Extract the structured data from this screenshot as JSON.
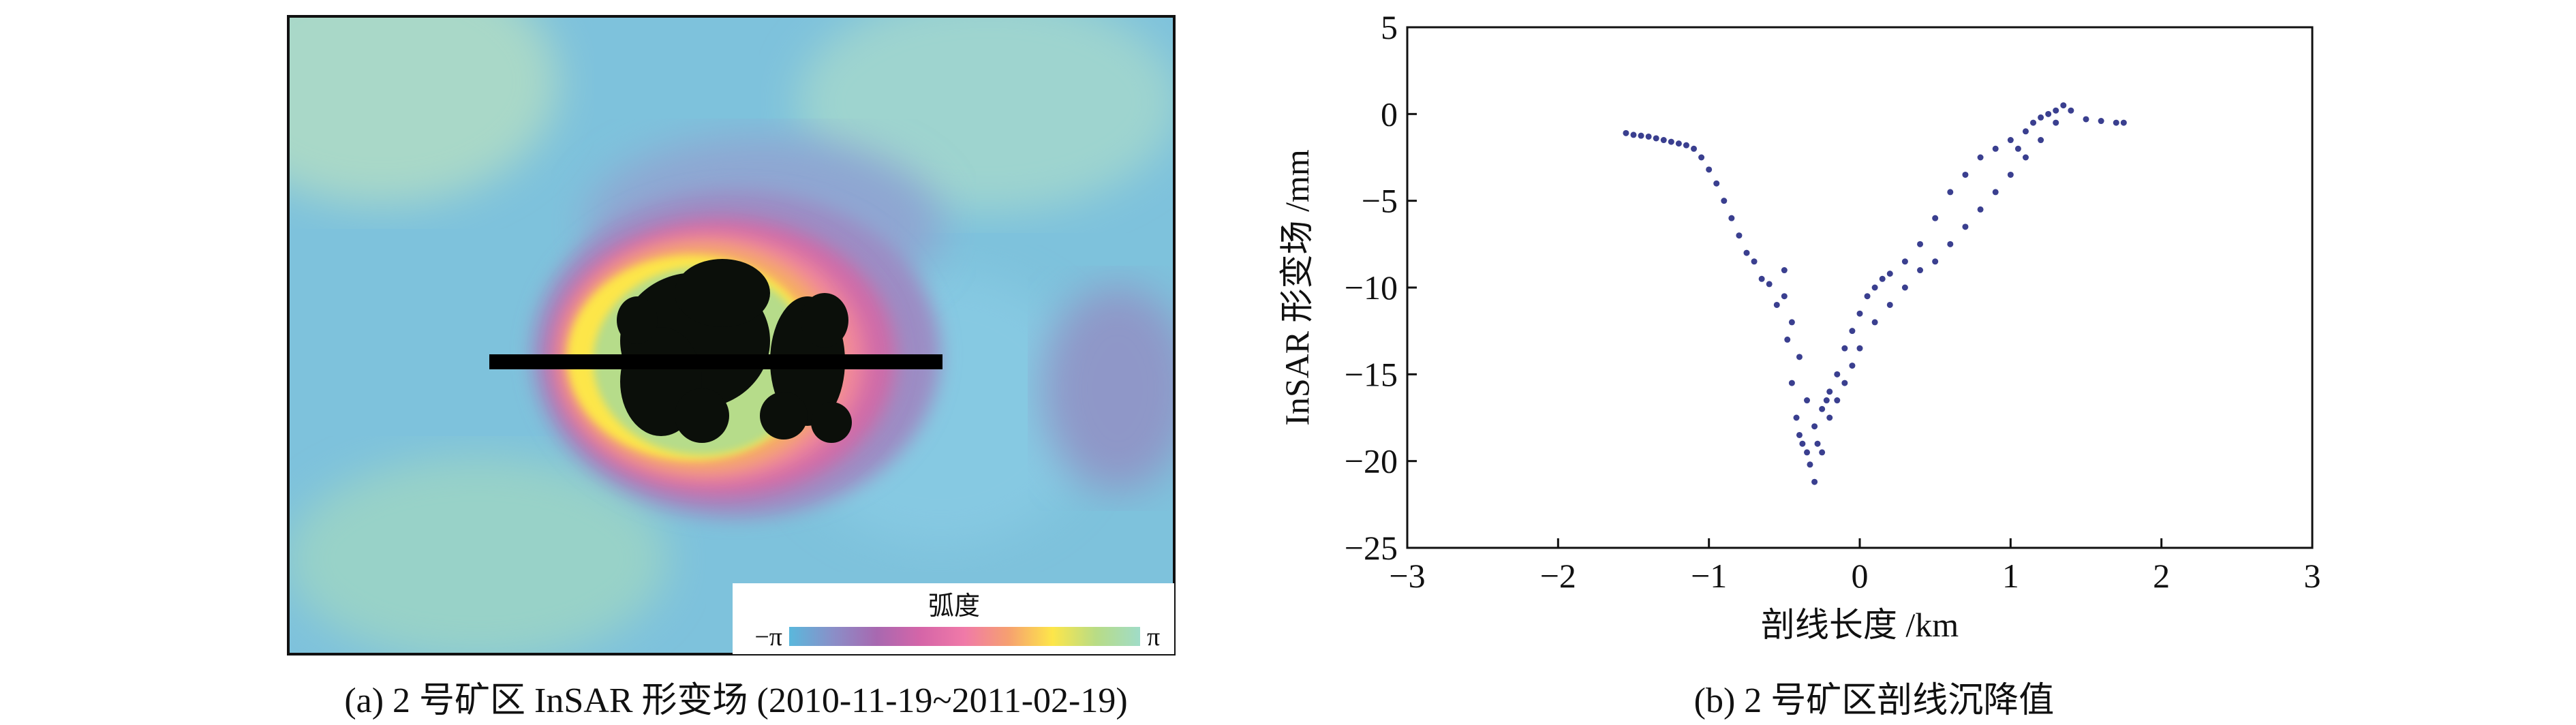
{
  "panel_a": {
    "caption": "(a) 2 号矿区 InSAR 形变场 (2010-11-19~2011-02-19)",
    "colorbar": {
      "title": "弧度",
      "min_label": "−π",
      "max_label": "π",
      "colors": [
        "#5ab8dc",
        "#8a8fc8",
        "#a868b0",
        "#d565a8",
        "#f07aa8",
        "#f6a070",
        "#fde64a",
        "#b8dc86",
        "#a0dcc8"
      ]
    }
  },
  "panel_b": {
    "caption": "(b) 2 号矿区剖线沉降值"
  },
  "chart_data": {
    "type": "scatter",
    "title": "",
    "xlabel": "剖线长度 /km",
    "ylabel": "InSAR 形变场 /mm",
    "xlim": [
      -3,
      3
    ],
    "ylim": [
      -25,
      5
    ],
    "xticks": [
      -3,
      -2,
      -1,
      0,
      1,
      2,
      3
    ],
    "yticks": [
      5,
      0,
      -5,
      -10,
      -15,
      -20,
      -25
    ],
    "tick_labels_x": [
      "−3",
      "−2",
      "−1",
      "0",
      "1",
      "2",
      "3"
    ],
    "tick_labels_y": [
      "5",
      "0",
      "−5",
      "−10",
      "−15",
      "−20",
      "−25"
    ],
    "grid": false,
    "marker_color": "#3a3f8f",
    "series": [
      {
        "x": [
          -1.55,
          -1.5,
          -1.45,
          -1.4,
          -1.35,
          -1.3,
          -1.25,
          -1.2,
          -1.15,
          -1.1,
          -1.05,
          -1.0,
          -0.95,
          -0.9,
          -0.85,
          -0.8,
          -0.75,
          -0.7,
          -0.65,
          -0.6,
          -0.55,
          -0.5,
          -0.48,
          -0.45,
          -0.42,
          -0.4,
          -0.38,
          -0.35,
          -0.33,
          -0.3,
          -0.28,
          -0.25,
          -0.22,
          -0.2,
          -0.15,
          -0.1,
          -0.05,
          0.0,
          0.05,
          0.1,
          0.15,
          0.2,
          0.3,
          0.4,
          0.5,
          0.6,
          0.7,
          0.8,
          0.9,
          1.0,
          1.05,
          1.1,
          1.15,
          1.2,
          1.25,
          1.3,
          1.35,
          1.4,
          1.5,
          1.6,
          1.7,
          1.75
        ],
        "y": [
          -1.1,
          -1.2,
          -1.25,
          -1.3,
          -1.4,
          -1.5,
          -1.6,
          -1.7,
          -1.8,
          -2.0,
          -2.5,
          -3.2,
          -4.0,
          -5.0,
          -6.0,
          -7.0,
          -8.0,
          -8.5,
          -9.5,
          -9.8,
          -11.0,
          -10.5,
          -13.0,
          -15.5,
          -17.5,
          -18.5,
          -19.0,
          -19.5,
          -20.2,
          -21.2,
          -19.0,
          -17.0,
          -16.5,
          -16.0,
          -15.0,
          -13.5,
          -12.5,
          -11.5,
          -10.5,
          -10.0,
          -9.5,
          -9.2,
          -8.5,
          -7.5,
          -6.0,
          -4.5,
          -3.5,
          -2.5,
          -2.0,
          -1.5,
          -2.0,
          -1.0,
          -0.5,
          -0.2,
          0.0,
          0.2,
          0.5,
          0.2,
          -0.3,
          -0.4,
          -0.5,
          -0.5
        ]
      },
      {
        "x": [
          -0.5,
          -0.45,
          -0.4,
          -0.35,
          -0.3,
          -0.25,
          -0.2,
          -0.15,
          -0.1,
          -0.05,
          0.0,
          0.1,
          0.2,
          0.3,
          0.4,
          0.5,
          0.6,
          0.7,
          0.8,
          0.9,
          1.0,
          1.1,
          1.2,
          1.3
        ],
        "y": [
          -9.0,
          -12.0,
          -14.0,
          -16.5,
          -18.0,
          -19.5,
          -17.5,
          -16.5,
          -15.5,
          -14.5,
          -13.5,
          -12.0,
          -11.0,
          -10.0,
          -9.0,
          -8.5,
          -7.5,
          -6.5,
          -5.5,
          -4.5,
          -3.5,
          -2.5,
          -1.5,
          -0.5
        ]
      }
    ]
  }
}
